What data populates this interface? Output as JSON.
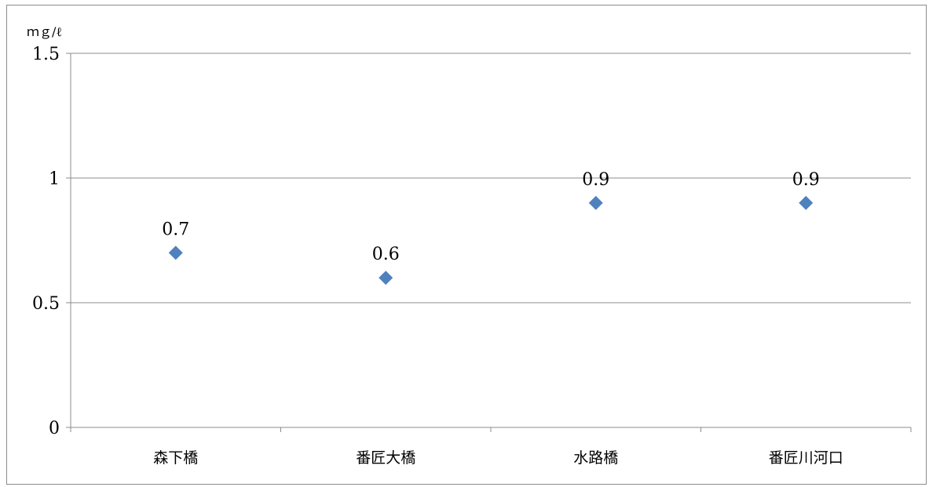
{
  "chart_data": {
    "type": "scatter",
    "title": "",
    "xlabel": "",
    "ylabel": "",
    "unit_label": "ｍｇ/ℓ",
    "categories": [
      "森下橋",
      "番匠大橋",
      "水路橋",
      "番匠川河口"
    ],
    "values": [
      0.7,
      0.6,
      0.9,
      0.9
    ],
    "data_labels": [
      "0.7",
      "0.6",
      "0.9",
      "0.9"
    ],
    "ylim": [
      0,
      1.5
    ],
    "yticks": [
      0,
      0.5,
      1,
      1.5
    ],
    "ytick_labels": [
      "0",
      "0.5",
      "1",
      "1.5"
    ],
    "grid": true,
    "marker": "diamond",
    "colors": {
      "marker": "#4f81bd",
      "gridline": "#8c8c8c",
      "frame": "#8c8c8c"
    },
    "legend": "none"
  }
}
